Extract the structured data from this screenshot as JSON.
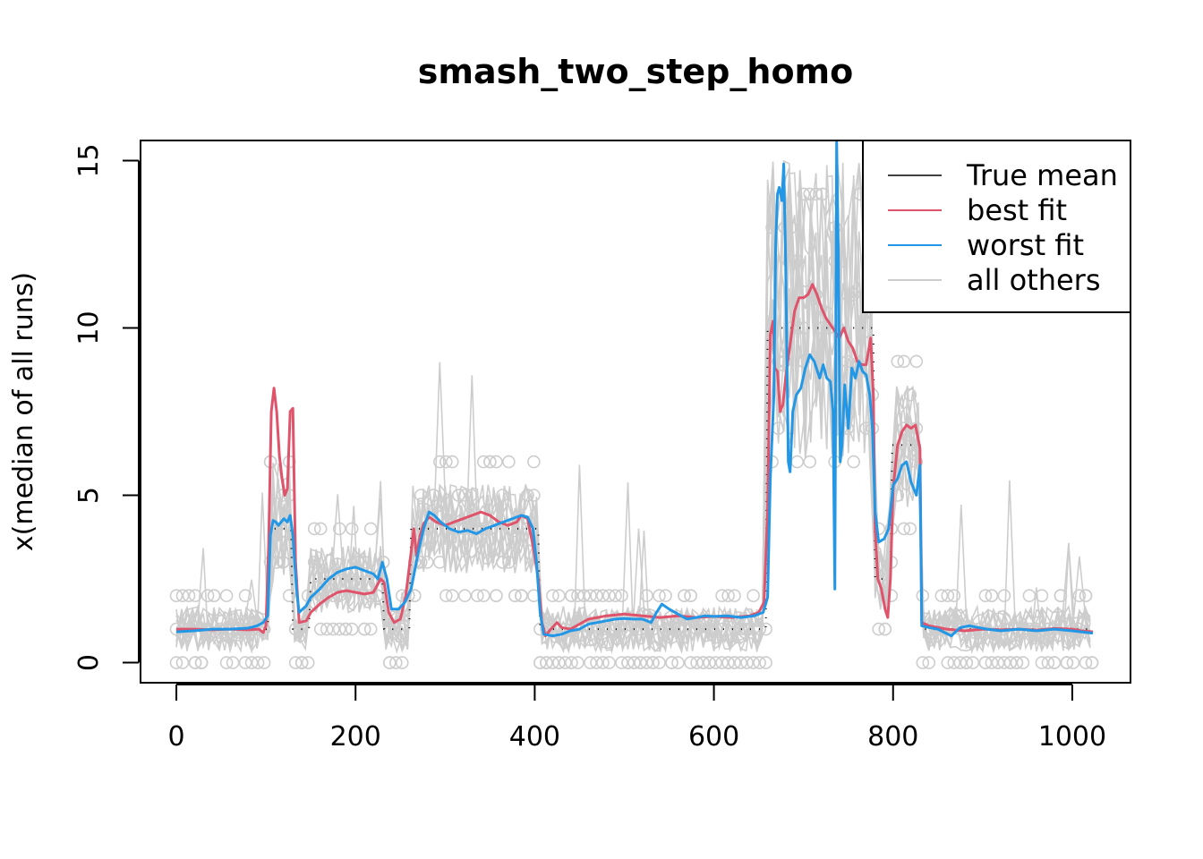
{
  "chart_data": {
    "type": "line",
    "title": "smash_two_step_homo",
    "xlabel": "",
    "ylabel": "x(median of all runs)",
    "xlim": [
      -40,
      1065
    ],
    "ylim": [
      -0.6,
      15.6
    ],
    "x_ticks": [
      0,
      200,
      400,
      600,
      800,
      1000
    ],
    "y_ticks": [
      0,
      5,
      10,
      15
    ],
    "x_tick_labels": [
      "0",
      "200",
      "400",
      "600",
      "800",
      "1000"
    ],
    "y_tick_labels": [
      "0",
      "5",
      "10",
      "15"
    ],
    "grid": false,
    "legend_position": "top-right",
    "series": [
      {
        "name": "True mean",
        "color": "#000000",
        "style": "dotted",
        "points": [
          [
            0,
            1
          ],
          [
            102,
            1
          ],
          [
            104,
            4
          ],
          [
            128,
            4
          ],
          [
            130,
            1
          ],
          [
            148,
            1
          ],
          [
            150,
            2.5
          ],
          [
            230,
            2.5
          ],
          [
            232,
            1
          ],
          [
            260,
            1
          ],
          [
            262,
            4
          ],
          [
            404,
            4
          ],
          [
            406,
            1
          ],
          [
            658,
            1
          ],
          [
            660,
            10
          ],
          [
            778,
            10
          ],
          [
            780,
            2.5
          ],
          [
            797,
            2.5
          ],
          [
            799,
            6.5
          ],
          [
            830,
            6.5
          ],
          [
            832,
            1
          ],
          [
            1023,
            1
          ]
        ]
      },
      {
        "name": "best fit",
        "color": "#DF536B",
        "style": "solid",
        "points": [
          [
            0,
            1
          ],
          [
            20,
            1
          ],
          [
            40,
            0.98
          ],
          [
            60,
            1
          ],
          [
            80,
            0.98
          ],
          [
            92,
            1
          ],
          [
            97,
            0.9
          ],
          [
            100,
            1.1
          ],
          [
            103,
            3.5
          ],
          [
            106,
            7.5
          ],
          [
            109,
            8.2
          ],
          [
            112,
            7.5
          ],
          [
            115,
            6.2
          ],
          [
            118,
            5.5
          ],
          [
            121,
            5
          ],
          [
            124,
            5.2
          ],
          [
            127,
            7.5
          ],
          [
            130,
            7.6
          ],
          [
            133,
            3
          ],
          [
            137,
            1.2
          ],
          [
            145,
            1.25
          ],
          [
            150,
            1.5
          ],
          [
            160,
            1.75
          ],
          [
            170,
            1.95
          ],
          [
            180,
            2.1
          ],
          [
            190,
            2.15
          ],
          [
            200,
            2.1
          ],
          [
            210,
            2.05
          ],
          [
            220,
            2.1
          ],
          [
            228,
            2.5
          ],
          [
            232,
            2.4
          ],
          [
            237,
            1.5
          ],
          [
            243,
            1.2
          ],
          [
            250,
            1.3
          ],
          [
            256,
            2
          ],
          [
            262,
            3.3
          ],
          [
            265,
            4
          ],
          [
            268,
            3.2
          ],
          [
            272,
            3.8
          ],
          [
            276,
            4.15
          ],
          [
            282,
            4.35
          ],
          [
            290,
            4.2
          ],
          [
            300,
            4.1
          ],
          [
            310,
            4.2
          ],
          [
            320,
            4.3
          ],
          [
            330,
            4.4
          ],
          [
            340,
            4.5
          ],
          [
            350,
            4.4
          ],
          [
            360,
            4.2
          ],
          [
            370,
            4.1
          ],
          [
            380,
            4.2
          ],
          [
            385,
            4.4
          ],
          [
            392,
            4.3
          ],
          [
            398,
            3.5
          ],
          [
            404,
            2.5
          ],
          [
            408,
            1.2
          ],
          [
            412,
            0.8
          ],
          [
            418,
            1
          ],
          [
            425,
            1.2
          ],
          [
            430,
            1.05
          ],
          [
            440,
            1
          ],
          [
            450,
            1.15
          ],
          [
            460,
            1.3
          ],
          [
            470,
            1.35
          ],
          [
            480,
            1.4
          ],
          [
            500,
            1.45
          ],
          [
            520,
            1.4
          ],
          [
            540,
            1.35
          ],
          [
            560,
            1.4
          ],
          [
            580,
            1.35
          ],
          [
            600,
            1.38
          ],
          [
            620,
            1.35
          ],
          [
            640,
            1.4
          ],
          [
            650,
            1.5
          ],
          [
            656,
            1.8
          ],
          [
            660,
            4.5
          ],
          [
            663,
            9.8
          ],
          [
            666,
            10.2
          ],
          [
            668,
            8.8
          ],
          [
            671,
            8.7
          ],
          [
            674,
            7.5
          ],
          [
            677,
            7.7
          ],
          [
            680,
            8.5
          ],
          [
            685,
            9.5
          ],
          [
            690,
            10.5
          ],
          [
            695,
            10.9
          ],
          [
            700,
            10.9
          ],
          [
            705,
            11
          ],
          [
            710,
            11.3
          ],
          [
            715,
            11
          ],
          [
            720,
            10.6
          ],
          [
            725,
            10.3
          ],
          [
            730,
            10.1
          ],
          [
            735,
            9.9
          ],
          [
            740,
            9.7
          ],
          [
            745,
            10
          ],
          [
            750,
            9.6
          ],
          [
            755,
            9.4
          ],
          [
            760,
            9
          ],
          [
            765,
            8.9
          ],
          [
            770,
            8.9
          ],
          [
            775,
            9.7
          ],
          [
            778,
            8
          ],
          [
            780,
            4
          ],
          [
            783,
            2.5
          ],
          [
            787,
            2.2
          ],
          [
            791,
            1.6
          ],
          [
            794,
            1.35
          ],
          [
            797,
            2.5
          ],
          [
            800,
            5.2
          ],
          [
            805,
            6.5
          ],
          [
            810,
            6.9
          ],
          [
            815,
            7.1
          ],
          [
            820,
            7
          ],
          [
            825,
            7.1
          ],
          [
            830,
            6.4
          ],
          [
            832,
            1.2
          ],
          [
            840,
            1.1
          ],
          [
            860,
            1
          ],
          [
            880,
            0.95
          ],
          [
            900,
            1
          ],
          [
            920,
            0.98
          ],
          [
            940,
            1
          ],
          [
            960,
            0.97
          ],
          [
            980,
            1.02
          ],
          [
            1000,
            1
          ],
          [
            1010,
            0.95
          ],
          [
            1023,
            0.92
          ]
        ]
      },
      {
        "name": "worst fit",
        "color": "#2297E6",
        "style": "solid",
        "points": [
          [
            0,
            0.92
          ],
          [
            20,
            0.95
          ],
          [
            40,
            1
          ],
          [
            60,
            1
          ],
          [
            80,
            1.03
          ],
          [
            90,
            1.1
          ],
          [
            97,
            1.2
          ],
          [
            102,
            1.4
          ],
          [
            105,
            3.8
          ],
          [
            108,
            4.25
          ],
          [
            111,
            4.2
          ],
          [
            114,
            4.1
          ],
          [
            117,
            4.2
          ],
          [
            120,
            4.3
          ],
          [
            124,
            4.2
          ],
          [
            127,
            4.4
          ],
          [
            130,
            3.8
          ],
          [
            134,
            2.2
          ],
          [
            137,
            1.5
          ],
          [
            145,
            1.7
          ],
          [
            150,
            1.95
          ],
          [
            160,
            2.2
          ],
          [
            170,
            2.5
          ],
          [
            180,
            2.7
          ],
          [
            190,
            2.8
          ],
          [
            200,
            2.85
          ],
          [
            210,
            2.75
          ],
          [
            220,
            2.65
          ],
          [
            225,
            2.5
          ],
          [
            230,
            3
          ],
          [
            235,
            2.5
          ],
          [
            240,
            1.6
          ],
          [
            248,
            1.6
          ],
          [
            255,
            1.8
          ],
          [
            262,
            2.2
          ],
          [
            270,
            3.3
          ],
          [
            276,
            4
          ],
          [
            282,
            4.5
          ],
          [
            288,
            4.4
          ],
          [
            295,
            4.2
          ],
          [
            305,
            4
          ],
          [
            315,
            3.9
          ],
          [
            325,
            3.95
          ],
          [
            335,
            3.85
          ],
          [
            345,
            4
          ],
          [
            355,
            4.1
          ],
          [
            365,
            4.2
          ],
          [
            375,
            4.3
          ],
          [
            385,
            4.4
          ],
          [
            392,
            4.35
          ],
          [
            398,
            4
          ],
          [
            402,
            3
          ],
          [
            406,
            1.5
          ],
          [
            410,
            0.85
          ],
          [
            420,
            0.8
          ],
          [
            430,
            0.85
          ],
          [
            440,
            0.95
          ],
          [
            450,
            1
          ],
          [
            460,
            1.15
          ],
          [
            470,
            1.2
          ],
          [
            480,
            1.25
          ],
          [
            490,
            1.3
          ],
          [
            500,
            1.32
          ],
          [
            510,
            1.3
          ],
          [
            520,
            1.3
          ],
          [
            530,
            1.2
          ],
          [
            536,
            1.5
          ],
          [
            542,
            1.75
          ],
          [
            550,
            1.6
          ],
          [
            560,
            1.45
          ],
          [
            570,
            1.3
          ],
          [
            580,
            1.35
          ],
          [
            590,
            1.4
          ],
          [
            600,
            1.38
          ],
          [
            615,
            1.4
          ],
          [
            630,
            1.35
          ],
          [
            645,
            1.4
          ],
          [
            655,
            1.5
          ],
          [
            660,
            1.95
          ],
          [
            663,
            5.5
          ],
          [
            667,
            8
          ],
          [
            669,
            12.5
          ],
          [
            671,
            14
          ],
          [
            673,
            14.2
          ],
          [
            676,
            13.8
          ],
          [
            678,
            14.9
          ],
          [
            680,
            12
          ],
          [
            683,
            6
          ],
          [
            685,
            5.7
          ],
          [
            688,
            7.5
          ],
          [
            692,
            8
          ],
          [
            697,
            8.2
          ],
          [
            702,
            8.8
          ],
          [
            707,
            9.2
          ],
          [
            712,
            9
          ],
          [
            718,
            8.5
          ],
          [
            722,
            8.9
          ],
          [
            726,
            8.5
          ],
          [
            730,
            8.4
          ],
          [
            733,
            7.5
          ],
          [
            735,
            2.2
          ],
          [
            737,
            15.6
          ],
          [
            739,
            12
          ],
          [
            741,
            6
          ],
          [
            743,
            6.5
          ],
          [
            746,
            8.3
          ],
          [
            750,
            7
          ],
          [
            754,
            8.8
          ],
          [
            758,
            8.5
          ],
          [
            762,
            9
          ],
          [
            766,
            8.7
          ],
          [
            770,
            8.6
          ],
          [
            774,
            8
          ],
          [
            777,
            7
          ],
          [
            780,
            4.5
          ],
          [
            784,
            3.6
          ],
          [
            790,
            3.7
          ],
          [
            795,
            4
          ],
          [
            800,
            5.3
          ],
          [
            805,
            5.5
          ],
          [
            810,
            5.9
          ],
          [
            815,
            6
          ],
          [
            820,
            5.4
          ],
          [
            826,
            5
          ],
          [
            830,
            5.9
          ],
          [
            832,
            1.1
          ],
          [
            840,
            1.05
          ],
          [
            850,
            1
          ],
          [
            865,
            0.8
          ],
          [
            875,
            1.05
          ],
          [
            885,
            1.1
          ],
          [
            895,
            1.05
          ],
          [
            905,
            1
          ],
          [
            920,
            0.95
          ],
          [
            940,
            1
          ],
          [
            960,
            0.95
          ],
          [
            980,
            1
          ],
          [
            1000,
            0.95
          ],
          [
            1023,
            0.88
          ]
        ]
      },
      {
        "name": "all others",
        "color": "#CDCDCD",
        "style": "solid"
      }
    ]
  }
}
